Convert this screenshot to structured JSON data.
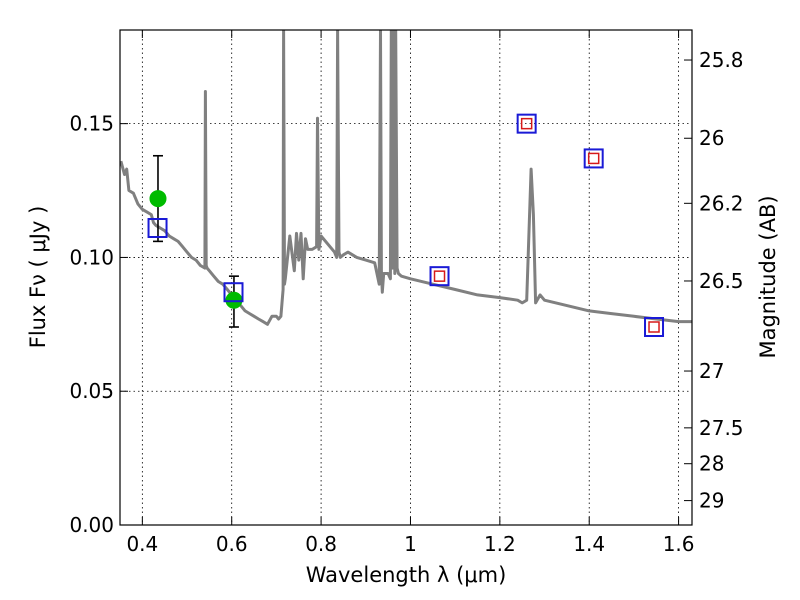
{
  "chart_data": {
    "type": "line",
    "xlabel": "Wavelength  λ (μm)",
    "ylabel": "Flux  Fν  ( μJy )",
    "y2label": "Magnitude (AB)",
    "xlim": [
      0.35,
      1.63
    ],
    "ylim": [
      0.0,
      0.185
    ],
    "grid": true,
    "x_ticks": [
      0.4,
      0.6,
      0.8,
      1.0,
      1.2,
      1.4,
      1.6
    ],
    "x_tick_labels": [
      "0.4",
      "0.6",
      "0.8",
      "1",
      "1.2",
      "1.4",
      "1.6"
    ],
    "y_ticks": [
      0.0,
      0.05,
      0.1,
      0.15
    ],
    "y_tick_labels": [
      "0.00",
      "0.05",
      "0.10",
      "0.15"
    ],
    "y2_ticks": [
      25.8,
      26.0,
      26.2,
      26.5,
      27.0,
      27.5,
      28.0,
      29.0
    ],
    "y2_tick_labels": [
      "25.8",
      "26",
      "26.2",
      "26.5",
      "27",
      "27.5",
      "28",
      "29"
    ],
    "series": [
      {
        "style": "line",
        "color": "#808080",
        "x": [
          0.352,
          0.36,
          0.365,
          0.37,
          0.38,
          0.39,
          0.4,
          0.41,
          0.42,
          0.425,
          0.43,
          0.44,
          0.45,
          0.46,
          0.47,
          0.48,
          0.49,
          0.5,
          0.51,
          0.52,
          0.53,
          0.54,
          0.541,
          0.543,
          0.545,
          0.55,
          0.56,
          0.57,
          0.58,
          0.59,
          0.6,
          0.61,
          0.62,
          0.63,
          0.64,
          0.65,
          0.66,
          0.67,
          0.68,
          0.69,
          0.7,
          0.705,
          0.71,
          0.715,
          0.716,
          0.718,
          0.72,
          0.73,
          0.74,
          0.745,
          0.75,
          0.755,
          0.76,
          0.765,
          0.77,
          0.78,
          0.79,
          0.792,
          0.795,
          0.8,
          0.82,
          0.83,
          0.835,
          0.837,
          0.84,
          0.843,
          0.85,
          0.86,
          0.88,
          0.9,
          0.92,
          0.93,
          0.933,
          0.935,
          0.937,
          0.94,
          0.95,
          0.955,
          0.957,
          0.96,
          0.963,
          0.965,
          0.967,
          0.97,
          0.973,
          0.98,
          1.0,
          1.05,
          1.1,
          1.15,
          1.2,
          1.24,
          1.25,
          1.26,
          1.27,
          1.275,
          1.28,
          1.29,
          1.3,
          1.35,
          1.4,
          1.45,
          1.5,
          1.55,
          1.6,
          1.63
        ],
        "y": [
          0.136,
          0.131,
          0.133,
          0.125,
          0.124,
          0.12,
          0.118,
          0.117,
          0.116,
          0.113,
          0.112,
          0.111,
          0.11,
          0.108,
          0.107,
          0.106,
          0.104,
          0.102,
          0.1,
          0.099,
          0.097,
          0.096,
          0.162,
          0.097,
          0.096,
          0.095,
          0.093,
          0.091,
          0.09,
          0.088,
          0.086,
          0.084,
          0.082,
          0.08,
          0.079,
          0.078,
          0.077,
          0.076,
          0.075,
          0.078,
          0.078,
          0.077,
          0.078,
          0.088,
          0.185,
          0.09,
          0.092,
          0.108,
          0.095,
          0.109,
          0.099,
          0.109,
          0.092,
          0.107,
          0.103,
          0.103,
          0.104,
          0.152,
          0.103,
          0.108,
          0.104,
          0.102,
          0.1,
          0.185,
          0.102,
          0.1,
          0.101,
          0.102,
          0.1,
          0.099,
          0.098,
          0.09,
          0.185,
          0.095,
          0.087,
          0.094,
          0.094,
          0.092,
          0.185,
          0.096,
          0.185,
          0.094,
          0.185,
          0.096,
          0.094,
          0.093,
          0.092,
          0.09,
          0.088,
          0.086,
          0.085,
          0.084,
          0.083,
          0.084,
          0.133,
          0.116,
          0.083,
          0.086,
          0.084,
          0.082,
          0.08,
          0.079,
          0.078,
          0.077,
          0.076,
          0.076
        ]
      },
      {
        "style": "errorbar",
        "color": "#00bb00",
        "marker": "circle",
        "x": [
          0.435,
          0.605
        ],
        "y": [
          0.122,
          0.084
        ],
        "yerr_low": [
          0.106,
          0.074
        ],
        "yerr_high": [
          0.138,
          0.093
        ]
      },
      {
        "style": "scatter",
        "color": "#1a1ad6",
        "marker": "open-square",
        "x": [
          0.434,
          0.604,
          1.065,
          1.26,
          1.41,
          1.545
        ],
        "y": [
          0.111,
          0.087,
          0.093,
          0.15,
          0.137,
          0.074
        ]
      },
      {
        "style": "scatter",
        "color": "#d61a1a",
        "marker": "open-square-small",
        "x": [
          1.065,
          1.26,
          1.41,
          1.545
        ],
        "y": [
          0.093,
          0.15,
          0.137,
          0.074
        ]
      }
    ]
  }
}
